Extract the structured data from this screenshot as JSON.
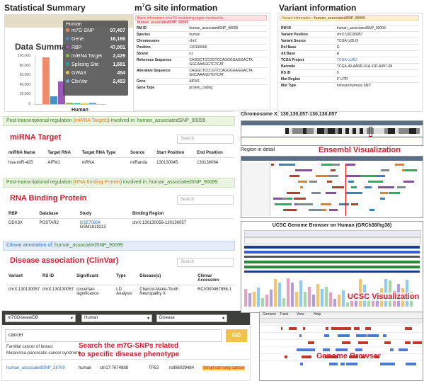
{
  "summary": {
    "title": "Statistical Summary",
    "chart_title": "Data Summary",
    "xlabel": "Human",
    "legend_header": "Human",
    "legend": [
      {
        "name": "m7G-SNP",
        "value": "97,407",
        "color": "#f08a6a"
      },
      {
        "name": "Gene",
        "value": "16,166",
        "color": "#4a90c8"
      },
      {
        "name": "RBP",
        "value": "47,001",
        "color": "#9b59b6"
      },
      {
        "name": "miRNA Target",
        "value": "2,429",
        "color": "#8bc34a"
      },
      {
        "name": "Splicing Site",
        "value": "1,681",
        "color": "#26a69a"
      },
      {
        "name": "GWAS",
        "value": "454",
        "color": "#f4c542"
      },
      {
        "name": "ClinVar",
        "value": "2,453",
        "color": "#6fa8dc"
      }
    ],
    "yticks": [
      "100,000",
      "80,000",
      "60,000",
      "40,000",
      "20,000",
      "0"
    ]
  },
  "chart_data": {
    "type": "bar",
    "title": "Data Summary",
    "categories": [
      "Human"
    ],
    "ylim": [
      0,
      100000
    ],
    "series": [
      {
        "name": "m7G-SNP",
        "values": [
          97407
        ]
      },
      {
        "name": "Gene",
        "values": [
          16166
        ]
      },
      {
        "name": "RBP",
        "values": [
          47001
        ]
      },
      {
        "name": "miRNA Target",
        "values": [
          2429
        ]
      },
      {
        "name": "Splicing Site",
        "values": [
          1681
        ]
      },
      {
        "name": "GWAS",
        "values": [
          454
        ]
      },
      {
        "name": "ClinVar",
        "values": [
          2453
        ]
      }
    ]
  },
  "site": {
    "title_pre": "m",
    "title_sup": "7",
    "title_post": "G site information",
    "header_pre": "Basic information of m7G-containing region involved in : ",
    "header_id": "human_associatedSNP_90099",
    "rows": [
      [
        "RM ID",
        "human_associatedSNP_90099"
      ],
      [
        "Species",
        "human"
      ],
      [
        "Chromosome",
        "chrX"
      ],
      [
        "Position",
        "130130066"
      ],
      [
        "Strand",
        "[-]"
      ],
      [
        "Reference Sequence",
        "CAGGCTCCCGTCCAGGGGAGGACTA\nGGCAAAGGTGTCAT"
      ],
      [
        "Alterative Sequence",
        "CAGGCTCCCGTCCAGGGGAGGACTA\nGGCAAAGGTGTCAT"
      ],
      [
        "Gene",
        "AIFM1"
      ],
      [
        "Gene Type",
        "protein_coding"
      ]
    ]
  },
  "variant": {
    "title": "Variant information",
    "header_pre": "Variant information : ",
    "header_id": "human_associatedSNP_90099",
    "rows": [
      [
        "RM ID",
        "human_associatedSNP_90099"
      ],
      [
        "Variant Position",
        "chrX:130130057"
      ],
      [
        "Variant Source",
        "TCGA (v35.0)"
      ],
      [
        "Ref Base",
        "G"
      ],
      [
        "Alt Base",
        "A"
      ],
      [
        "TCGA Project",
        "TCGA-LUAD"
      ],
      [
        "Barcode",
        "TCGA-49-AARR-01A-11D-A397-08"
      ],
      [
        "RS ID",
        "0"
      ],
      [
        "Mut Region",
        "3' UTR"
      ],
      [
        "Mut Type",
        "nonsynonymous SNV"
      ]
    ]
  },
  "mirna": {
    "bar_pre": "Post-transcriptional regulation (",
    "bar_hl": "miRNA Targets",
    "bar_post": ") involved in: human_associatedSNP_90099",
    "title": "miRNA Target",
    "search_placeholder": "Search",
    "headers": [
      "miRNA Name",
      "Target RNA",
      "Target RNA Type",
      "Source",
      "Start Position",
      "End Position"
    ],
    "row": [
      "hsa-miR-425",
      "AIFM1",
      "mRNA",
      "miRanda",
      "130130045",
      "130130064"
    ]
  },
  "rbp": {
    "bar_pre": "Post-transcriptional regulation (",
    "bar_hl": "RNA Binding Protein",
    "bar_post": ") involved in: human_associatedSNP_90099",
    "title": "RNA Binding Protein",
    "search_placeholder": "Search",
    "headers": [
      "RBP",
      "Database",
      "Study",
      "Binding Region"
    ],
    "row": [
      "DDX3X",
      "POSTAR2",
      "GSE70804",
      "GSM1819213",
      "chrX:130130056-130130057"
    ]
  },
  "clinvar": {
    "bar_pre": "Clinvar annotation of: ",
    "bar_id": "human_associatedSNP_90099",
    "title": "Disease association (ClinVar)",
    "search_placeholder": "Search",
    "headers": [
      "Variant",
      "RS ID",
      "Significant",
      "Type",
      "Disease(s)",
      "Clinvar Accession"
    ],
    "row": [
      "chrX:130130057",
      "chrX:130130057",
      "Uncertain significance",
      "LD Analysis",
      "Charcot-Marie-Tooth Neuropathy X",
      "RCV000467856.1"
    ]
  },
  "disease_search": {
    "db": "m7GDiseaseDB",
    "species": "Human",
    "type": "Disease",
    "query": "cancer",
    "go": "GO",
    "callout_line1": "Search the m7G-SNPs related",
    "callout_line2": "to specific disease phenotype",
    "suggestions": [
      "Familial cancer of breast",
      "Melanoma-pancreatic cancer syndrome"
    ],
    "result": [
      "human_associatedSNP_28709",
      "human",
      "chr17:7674888",
      "TP53",
      "rs886039484",
      "Small cell lung cancer"
    ]
  },
  "ensembl": {
    "header": "Chromosome X: 130,130,057-130,130,057",
    "region_label": "Region in detail",
    "label": "Ensembl Visualization"
  },
  "ucsc": {
    "browser_title": "UCSC Genome Browser on Human (GRCh38/hg38)",
    "label": "UCSC Visualization"
  },
  "genome": {
    "menu": [
      "Genome",
      "Track",
      "View",
      "Help"
    ],
    "label": "Genome Browser"
  },
  "colors": {
    "accent_red": "#d0202f",
    "link_blue": "#2a6ebb",
    "green": "#3a7a26",
    "orange": "#e07a1f"
  }
}
